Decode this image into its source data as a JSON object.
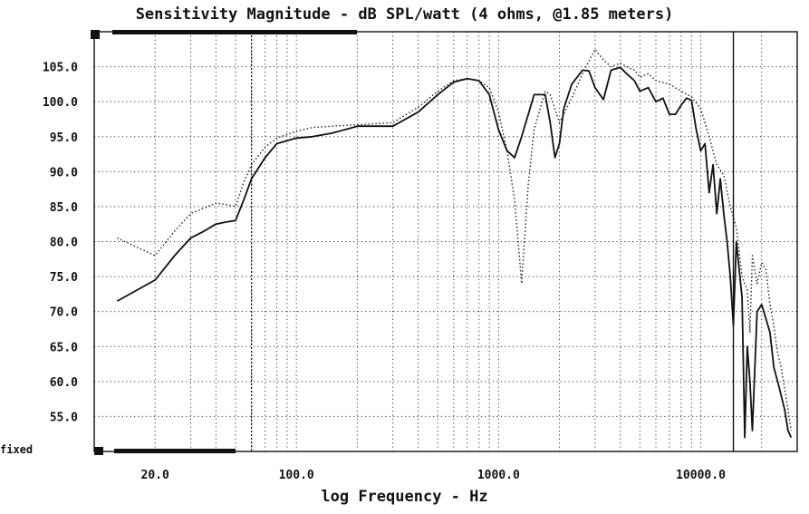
{
  "chart_data": {
    "type": "line",
    "title": "Sensitivity Magnitude - dB SPL/watt (4 ohms, @1.85 meters)",
    "xlabel": "log Frequency - Hz",
    "ylabel": "",
    "x_scale": "log",
    "xlim": [
      10,
      30000
    ],
    "ylim": [
      50,
      110
    ],
    "grid": true,
    "y_ticks": [
      "105.0",
      "100.0",
      "95.0",
      "90.0",
      "85.0",
      "80.0",
      "75.0",
      "70.0",
      "65.0",
      "60.0",
      "55.0"
    ],
    "y_tick_values": [
      105,
      100,
      95,
      90,
      85,
      80,
      75,
      70,
      65,
      60,
      55
    ],
    "x_ticks": [
      "20.0",
      "100.0",
      "1000.0",
      "10000.0"
    ],
    "x_tick_values": [
      20,
      100,
      1000,
      10000
    ],
    "bottom_label": "fixed",
    "series": [
      {
        "style": "solid",
        "x": [
          13,
          20,
          25,
          30,
          35,
          40,
          45,
          50,
          55,
          60,
          70,
          80,
          100,
          120,
          150,
          200,
          300,
          400,
          500,
          600,
          700,
          800,
          900,
          1000,
          1100,
          1200,
          1300,
          1500,
          1700,
          1800,
          1900,
          2000,
          2100,
          2300,
          2600,
          2800,
          3000,
          3300,
          3600,
          4000,
          4300,
          4700,
          5000,
          5500,
          6000,
          6500,
          7000,
          7500,
          8000,
          8500,
          9000,
          9500,
          10000,
          10500,
          11000,
          11500,
          12000,
          12500,
          13000,
          13500,
          14000,
          14500,
          15000,
          16000,
          16500,
          17000,
          17500,
          18000,
          19000,
          20000,
          21000,
          22000,
          23000,
          24000,
          25000,
          26000,
          27000,
          28000
        ],
        "values": [
          71.5,
          74.5,
          78,
          80.5,
          81.5,
          82.5,
          82.8,
          83,
          86,
          89,
          92,
          94,
          94.8,
          95,
          95.5,
          96.5,
          96.5,
          98.5,
          101,
          102.8,
          103.3,
          103,
          101,
          96,
          93,
          92,
          95,
          101,
          101,
          97,
          92,
          94,
          99,
          102.5,
          104.5,
          104.4,
          102,
          100.3,
          104.5,
          104.9,
          104,
          103,
          101.5,
          102,
          100,
          100.5,
          98.2,
          98.2,
          99.5,
          100.5,
          100.2,
          96,
          93,
          94,
          87,
          91,
          84,
          89,
          84,
          80,
          75,
          68,
          80,
          72,
          52,
          65,
          60,
          53,
          70,
          71,
          69,
          67,
          62,
          60,
          58,
          56,
          53,
          52
        ],
        "color": "#111111"
      },
      {
        "style": "dotted",
        "x": [
          13,
          20,
          25,
          30,
          35,
          40,
          45,
          50,
          55,
          60,
          70,
          80,
          100,
          120,
          150,
          200,
          300,
          400,
          500,
          600,
          700,
          800,
          900,
          1000,
          1100,
          1200,
          1300,
          1400,
          1500,
          1700,
          1800,
          2000,
          2300,
          2600,
          3000,
          3300,
          3600,
          4000,
          4300,
          4700,
          5000,
          5500,
          6000,
          7000,
          8000,
          9000,
          10000,
          11000,
          12000,
          13000,
          14000,
          15000,
          16000,
          17000,
          17500,
          18000,
          19000,
          20000,
          21000,
          22000,
          23000,
          24000,
          25000,
          26000,
          27000,
          28000
        ],
        "values": [
          80.5,
          78,
          81.5,
          84,
          84.8,
          85.5,
          85.3,
          85,
          88.5,
          91,
          93.5,
          94.8,
          95.8,
          96.3,
          96.5,
          96.7,
          97,
          99.2,
          101.5,
          103,
          103.3,
          103,
          102,
          98.5,
          93,
          86,
          74,
          88,
          96,
          101.5,
          101,
          97,
          100.5,
          104,
          107.5,
          106,
          105,
          105.5,
          105,
          104.5,
          103.5,
          104,
          103,
          102.5,
          101.5,
          100.7,
          99,
          95,
          91,
          89.5,
          85,
          82,
          75,
          73,
          67,
          78,
          74,
          77,
          76,
          71,
          68,
          64,
          62,
          59,
          56,
          53
        ],
        "color": "#222222"
      }
    ]
  }
}
